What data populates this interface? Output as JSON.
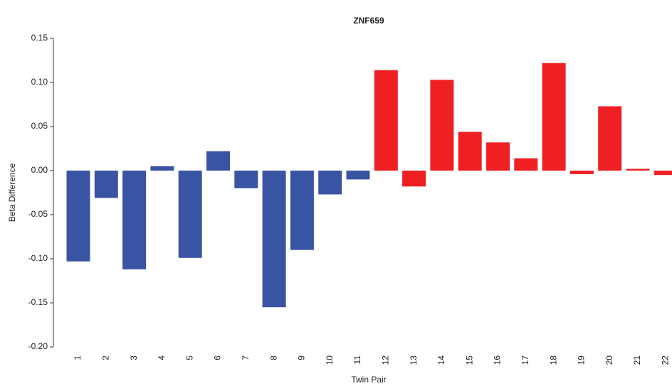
{
  "chart_data": {
    "type": "bar",
    "title": "ZNF659",
    "x_label": "Twin Pair",
    "y_label": "Beta Difference",
    "categories": [
      "1",
      "2",
      "3",
      "4",
      "5",
      "6",
      "7",
      "8",
      "9",
      "10",
      "11",
      "12",
      "13",
      "14",
      "15",
      "16",
      "17",
      "18",
      "19",
      "20",
      "21",
      "22"
    ],
    "series": [
      {
        "color": "#3a54a4",
        "values": [
          -0.103,
          -0.031,
          -0.112,
          0.005,
          -0.099,
          0.022,
          -0.02,
          -0.155,
          -0.09,
          -0.027,
          -0.01,
          null,
          null,
          null,
          null,
          null,
          null,
          null,
          null,
          null,
          null,
          null
        ]
      },
      {
        "color": "#ee2024",
        "values": [
          null,
          null,
          null,
          null,
          null,
          null,
          null,
          null,
          null,
          null,
          null,
          0.114,
          -0.018,
          0.103,
          0.044,
          0.032,
          0.014,
          0.122,
          -0.004,
          0.073,
          0.002,
          -0.005
        ]
      }
    ],
    "ylim": [
      -0.2,
      0.15
    ],
    "yticks": [
      0.15,
      {
        "value": 0.1,
        "label": "0.10"
      },
      0.05,
      {
        "value": 0,
        "label": "0.00"
      },
      -0.05,
      {
        "value": -0.1,
        "label": "-0.10"
      },
      -0.15,
      {
        "value": -0.2,
        "label": "-0.20"
      }
    ],
    "grid": false
  }
}
